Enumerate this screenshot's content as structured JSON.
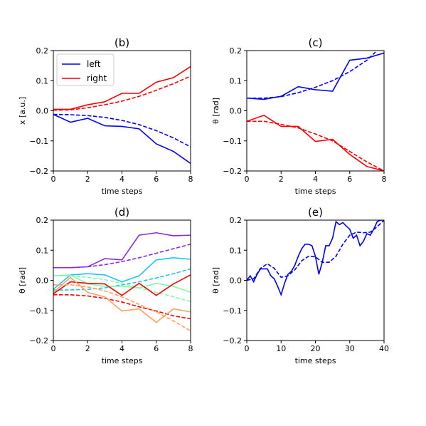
{
  "chart_data": [
    {
      "type": "line",
      "title": "(b)",
      "xlabel": "time steps",
      "ylabel": "x [a.u.]",
      "xlim": [
        0,
        8
      ],
      "ylim": [
        -0.2,
        0.2
      ],
      "xticks": [
        "0",
        "2",
        "4",
        "6",
        "8"
      ],
      "yticks": [
        "0.2",
        "0.1",
        "0.0",
        "−0.1",
        "−0.2"
      ],
      "legend": {
        "position": "top-left",
        "entries": [
          {
            "label": "left",
            "color": "#0000ff"
          },
          {
            "label": "right",
            "color": "#ff0000"
          }
        ]
      },
      "series": [
        {
          "name": "left",
          "color": "#0000ff",
          "dash": false,
          "x": [
            0,
            1,
            2,
            3,
            4,
            5,
            6,
            7,
            8
          ],
          "y": [
            -0.012,
            -0.038,
            -0.025,
            -0.05,
            -0.052,
            -0.06,
            -0.11,
            -0.135,
            -0.175
          ]
        },
        {
          "color": "#0000ff",
          "dash": true,
          "x": [
            0,
            1,
            2,
            3,
            4,
            5,
            6,
            7,
            8
          ],
          "y": [
            -0.012,
            -0.013,
            -0.016,
            -0.022,
            -0.032,
            -0.046,
            -0.066,
            -0.09,
            -0.12
          ]
        },
        {
          "name": "right",
          "color": "#ff0000",
          "dash": false,
          "x": [
            0,
            1,
            2,
            3,
            4,
            5,
            6,
            7,
            8
          ],
          "y": [
            0.005,
            0.005,
            0.02,
            0.03,
            0.058,
            0.058,
            0.095,
            0.11,
            0.147
          ]
        },
        {
          "color": "#ff0000",
          "dash": true,
          "x": [
            0,
            1,
            2,
            3,
            4,
            5,
            6,
            7,
            8
          ],
          "y": [
            0.002,
            0.003,
            0.01,
            0.02,
            0.032,
            0.048,
            0.068,
            0.09,
            0.115
          ]
        }
      ]
    },
    {
      "type": "line",
      "title": "(c)",
      "xlabel": "time steps",
      "ylabel": "θ [rad]",
      "xlim": [
        0,
        8
      ],
      "ylim": [
        -0.2,
        0.2
      ],
      "xticks": [
        "0",
        "2",
        "4",
        "6",
        "8"
      ],
      "yticks": [
        "0.2",
        "0.1",
        "0.0",
        "−0.1",
        "−0.2"
      ],
      "series": [
        {
          "color": "#0000ff",
          "dash": false,
          "x": [
            0,
            1,
            2,
            3,
            4,
            5,
            6,
            7,
            8
          ],
          "y": [
            0.042,
            0.038,
            0.048,
            0.08,
            0.07,
            0.065,
            0.168,
            0.175,
            0.192
          ]
        },
        {
          "color": "#0000ff",
          "dash": true,
          "x": [
            0,
            1,
            2,
            3,
            4,
            5,
            6,
            7,
            7.5
          ],
          "y": [
            0.042,
            0.042,
            0.047,
            0.06,
            0.078,
            0.1,
            0.13,
            0.168,
            0.195
          ]
        },
        {
          "color": "#ff0000",
          "dash": false,
          "x": [
            0,
            1,
            2,
            3,
            4,
            5,
            6,
            7,
            8
          ],
          "y": [
            -0.035,
            -0.015,
            -0.052,
            -0.052,
            -0.102,
            -0.095,
            -0.145,
            -0.185,
            -0.2
          ]
        },
        {
          "color": "#ff0000",
          "dash": true,
          "x": [
            0,
            1,
            2,
            3,
            4,
            5,
            6,
            7,
            8
          ],
          "y": [
            -0.035,
            -0.035,
            -0.045,
            -0.057,
            -0.077,
            -0.1,
            -0.135,
            -0.17,
            -0.2
          ]
        }
      ]
    },
    {
      "type": "line",
      "title": "(d)",
      "xlabel": "time steps",
      "ylabel": "θ [rad]",
      "xlim": [
        0,
        8
      ],
      "ylim": [
        -0.2,
        0.2
      ],
      "xticks": [
        "0",
        "2",
        "4",
        "6",
        "8"
      ],
      "yticks": [
        "0.2",
        "0.1",
        "0.0",
        "−0.1",
        "−0.2"
      ],
      "series": [
        {
          "color": "#8a2be2",
          "dash": false,
          "x": [
            0,
            1,
            2,
            3,
            4,
            5,
            6,
            7,
            8
          ],
          "y": [
            0.042,
            0.042,
            0.045,
            0.072,
            0.068,
            0.15,
            0.158,
            0.148,
            0.15
          ]
        },
        {
          "color": "#8a2be2",
          "dash": true,
          "x": [
            0,
            1,
            2,
            3,
            4,
            5,
            6,
            7,
            8
          ],
          "y": [
            0.042,
            0.042,
            0.045,
            0.052,
            0.062,
            0.075,
            0.09,
            0.105,
            0.12
          ]
        },
        {
          "color": "#1ec8e6",
          "dash": false,
          "x": [
            0,
            1,
            2,
            3,
            4,
            5,
            6,
            7,
            8
          ],
          "y": [
            -0.03,
            0.018,
            0.022,
            0.018,
            -0.005,
            0.015,
            0.068,
            0.075,
            0.07
          ]
        },
        {
          "color": "#1ec8e6",
          "dash": true,
          "x": [
            0,
            1,
            2,
            3,
            4,
            5,
            6,
            7,
            8
          ],
          "y": [
            -0.032,
            -0.032,
            -0.03,
            -0.025,
            -0.015,
            -0.005,
            0.008,
            0.022,
            0.038
          ]
        },
        {
          "color": "#7fffaa",
          "dash": false,
          "x": [
            0,
            1,
            2,
            3,
            4,
            5,
            6,
            7,
            8
          ],
          "y": [
            0.015,
            0.018,
            -0.012,
            -0.02,
            -0.02,
            -0.025,
            -0.01,
            -0.02,
            -0.04
          ]
        },
        {
          "color": "#7fffaa",
          "dash": true,
          "x": [
            0,
            1,
            2,
            3,
            4,
            5,
            6,
            7,
            8
          ],
          "y": [
            0.015,
            0.015,
            0.01,
            0.002,
            -0.01,
            -0.025,
            -0.04,
            -0.055,
            -0.07
          ]
        },
        {
          "color": "#ff0000",
          "dash": false,
          "x": [
            0,
            1,
            2,
            3,
            4,
            5,
            6,
            7,
            8
          ],
          "y": [
            -0.045,
            -0.005,
            -0.01,
            -0.012,
            -0.05,
            -0.01,
            -0.05,
            -0.012,
            0.018
          ]
        },
        {
          "color": "#ff0000",
          "dash": true,
          "x": [
            0,
            1,
            2,
            3,
            4,
            5,
            6,
            7,
            8
          ],
          "y": [
            -0.048,
            -0.048,
            -0.052,
            -0.06,
            -0.072,
            -0.088,
            -0.102,
            -0.118,
            -0.128
          ]
        },
        {
          "color": "#ffa060",
          "dash": false,
          "x": [
            0,
            1,
            2,
            3,
            4,
            5,
            6,
            7,
            8
          ],
          "y": [
            -0.04,
            0.01,
            -0.04,
            -0.055,
            -0.102,
            -0.095,
            -0.14,
            -0.095,
            -0.105
          ]
        },
        {
          "color": "#ffa060",
          "dash": true,
          "x": [
            0,
            1,
            2,
            3,
            4,
            5,
            6,
            7,
            8
          ],
          "y": [
            -0.015,
            -0.015,
            -0.022,
            -0.035,
            -0.055,
            -0.08,
            -0.105,
            -0.135,
            -0.168
          ]
        }
      ]
    },
    {
      "type": "line",
      "title": "(e)",
      "xlabel": "time steps",
      "ylabel": "θ [rad]",
      "xlim": [
        0,
        40
      ],
      "ylim": [
        -0.2,
        0.2
      ],
      "xticks": [
        "0",
        "10",
        "20",
        "30",
        "40"
      ],
      "yticks": [
        "0.2",
        "0.1",
        "0.0",
        "−0.1",
        "−0.2"
      ],
      "series": [
        {
          "color": "#0000ff",
          "dash": false,
          "x": [
            0,
            1,
            2,
            3,
            4,
            5,
            6,
            7,
            8,
            9,
            10,
            11,
            12,
            13,
            14,
            15,
            16,
            17,
            18,
            19,
            20,
            21,
            22,
            23,
            24,
            25,
            26,
            27,
            28,
            29,
            30,
            31,
            32,
            33,
            34,
            35,
            36,
            37,
            38,
            39,
            40
          ],
          "y": [
            0.0,
            0.015,
            -0.005,
            0.02,
            0.038,
            0.038,
            0.038,
            0.015,
            0.005,
            -0.02,
            -0.048,
            -0.01,
            0.02,
            0.03,
            0.05,
            0.08,
            0.105,
            0.12,
            0.12,
            0.115,
            0.08,
            0.02,
            0.06,
            0.115,
            0.115,
            0.14,
            0.195,
            0.185,
            0.192,
            0.18,
            0.17,
            0.14,
            0.15,
            0.115,
            0.13,
            0.155,
            0.15,
            0.17,
            0.195,
            0.2,
            0.2
          ]
        },
        {
          "color": "#0000ff",
          "dash": true,
          "x": [
            0,
            2,
            4,
            6,
            8,
            10,
            12,
            14,
            16,
            18,
            20,
            22,
            24,
            26,
            28,
            30,
            32,
            34,
            36,
            38,
            40
          ],
          "y": [
            0.0,
            0.005,
            0.04,
            0.055,
            0.04,
            0.01,
            0.015,
            0.035,
            0.065,
            0.08,
            0.078,
            0.06,
            0.06,
            0.08,
            0.12,
            0.15,
            0.16,
            0.158,
            0.16,
            0.178,
            0.2
          ]
        }
      ]
    }
  ]
}
